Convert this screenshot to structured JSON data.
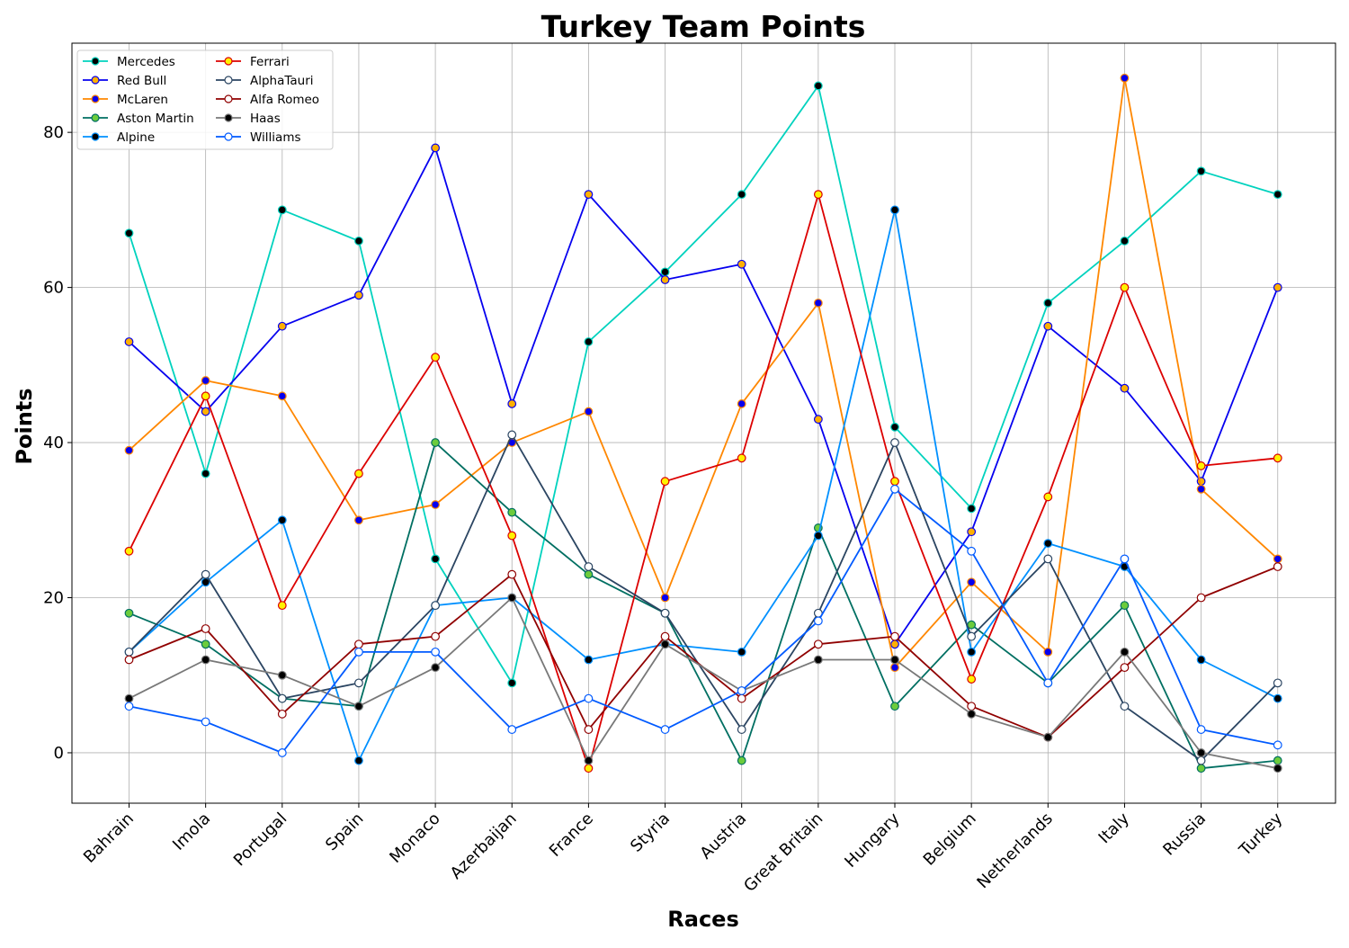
{
  "chart_data": {
    "type": "line",
    "title": "Turkey Team Points",
    "xlabel": "Races",
    "ylabel": "Points",
    "ylim": [
      -6.5,
      91.5
    ],
    "yticks": [
      0,
      20,
      40,
      60,
      80
    ],
    "grid": true,
    "legend_position": "top-left",
    "categories": [
      "Bahrain",
      "Imola",
      "Portugal",
      "Spain",
      "Monaco",
      "Azerbaijan",
      "France",
      "Styria",
      "Austria",
      "Great Britain",
      "Hungary",
      "Belgium",
      "Netherlands",
      "Italy",
      "Russia",
      "Turkey"
    ],
    "series": [
      {
        "name": "Mercedes",
        "color": "#00d2be",
        "marker_fill": "#000000",
        "values": [
          67,
          36,
          70,
          66,
          25,
          9,
          53,
          62,
          72,
          86,
          42,
          31.5,
          58,
          66,
          75,
          72
        ]
      },
      {
        "name": "Red Bull",
        "color": "#0600ef",
        "marker_fill": "#ffb000",
        "values": [
          53,
          44,
          55,
          59,
          78,
          45,
          72,
          61,
          63,
          43,
          14,
          28.5,
          55,
          47,
          35,
          60
        ]
      },
      {
        "name": "McLaren",
        "color": "#ff8700",
        "marker_fill": "#0600ef",
        "values": [
          39,
          48,
          46,
          30,
          32,
          40,
          44,
          20,
          45,
          58,
          11,
          22,
          13,
          87,
          34,
          25
        ]
      },
      {
        "name": "Aston Martin",
        "color": "#006f62",
        "marker_fill": "#6ccc3c",
        "values": [
          18,
          14,
          7,
          6,
          40,
          31,
          23,
          18,
          -1,
          29,
          6,
          16.5,
          9,
          19,
          -2,
          -1
        ]
      },
      {
        "name": "Alpine",
        "color": "#0090ff",
        "marker_fill": "#000000",
        "values": [
          13,
          22,
          30,
          -1,
          19,
          20,
          12,
          14,
          13,
          28,
          70,
          13,
          27,
          24,
          12,
          7
        ]
      },
      {
        "name": "Ferrari",
        "color": "#dc0000",
        "marker_fill": "#fff200",
        "values": [
          26,
          46,
          19,
          36,
          51,
          28,
          -2,
          35,
          38,
          72,
          35,
          9.5,
          33,
          60,
          37,
          38
        ]
      },
      {
        "name": "AlphaTauri",
        "color": "#2b4562",
        "marker_fill": "#ffffff",
        "values": [
          13,
          23,
          7,
          9,
          19,
          41,
          24,
          18,
          3,
          18,
          40,
          15,
          25,
          6,
          -1,
          9
        ]
      },
      {
        "name": "Alfa Romeo",
        "color": "#900000",
        "marker_fill": "#ffffff",
        "values": [
          12,
          16,
          5,
          14,
          15,
          23,
          3,
          15,
          7,
          14,
          15,
          6,
          2,
          11,
          20,
          24
        ]
      },
      {
        "name": "Haas",
        "color": "#787878",
        "marker_fill": "#000000",
        "values": [
          7,
          12,
          10,
          6,
          11,
          20,
          -1,
          14,
          8,
          12,
          12,
          5,
          2,
          13,
          0,
          -2
        ]
      },
      {
        "name": "Williams",
        "color": "#005aff",
        "marker_fill": "#ffffff",
        "values": [
          6,
          4,
          0,
          13,
          13,
          3,
          7,
          3,
          8,
          17,
          34,
          26,
          9,
          25,
          3,
          1
        ]
      }
    ]
  }
}
